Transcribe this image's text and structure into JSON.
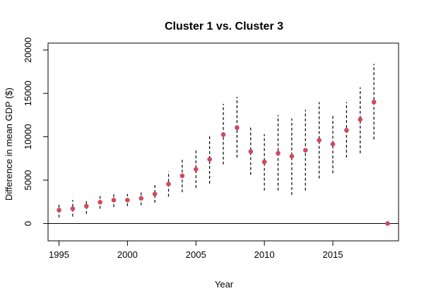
{
  "chart_data": {
    "type": "scatter",
    "title": "Cluster 1 vs. Cluster 3",
    "xlabel": "Year",
    "ylabel": "Difference in mean GDP ($)",
    "xlim": [
      1994.2,
      2019.8
    ],
    "ylim": [
      -2000,
      20800
    ],
    "x_ticks": [
      1995,
      2000,
      2005,
      2010,
      2015
    ],
    "y_ticks": [
      0,
      5000,
      10000,
      15000,
      20000
    ],
    "reference_line_y": 0,
    "grid": false,
    "legend": "none",
    "colors": {
      "point": "#d1495b",
      "interval": "#000000",
      "reference": "#000000",
      "axis": "#000000"
    },
    "series": [
      {
        "x": [
          1995,
          1996,
          1997,
          1998,
          1999,
          2000,
          2001,
          2002,
          2003,
          2004,
          2005,
          2006,
          2007,
          2008,
          2009,
          2010,
          2011,
          2012,
          2013,
          2014,
          2015,
          2016,
          2017,
          2018,
          2019
        ],
        "y": [
          1550,
          1700,
          2000,
          2450,
          2700,
          2700,
          2900,
          3400,
          4550,
          5500,
          6250,
          7400,
          10250,
          11050,
          8300,
          7100,
          8100,
          7750,
          8450,
          9600,
          9150,
          10750,
          12000,
          14000,
          0
        ],
        "lower": [
          700,
          800,
          1100,
          1700,
          1900,
          2000,
          2100,
          2400,
          3100,
          3600,
          4100,
          4600,
          6800,
          7600,
          5600,
          3800,
          3800,
          3300,
          3800,
          5200,
          5800,
          7600,
          8100,
          9700,
          0
        ],
        "upper": [
          2400,
          2700,
          2800,
          3300,
          3500,
          3400,
          3800,
          4500,
          6000,
          7400,
          8500,
          10200,
          13800,
          14600,
          11100,
          10300,
          12500,
          12100,
          13100,
          14000,
          12600,
          14000,
          15700,
          18400,
          0
        ]
      }
    ]
  }
}
